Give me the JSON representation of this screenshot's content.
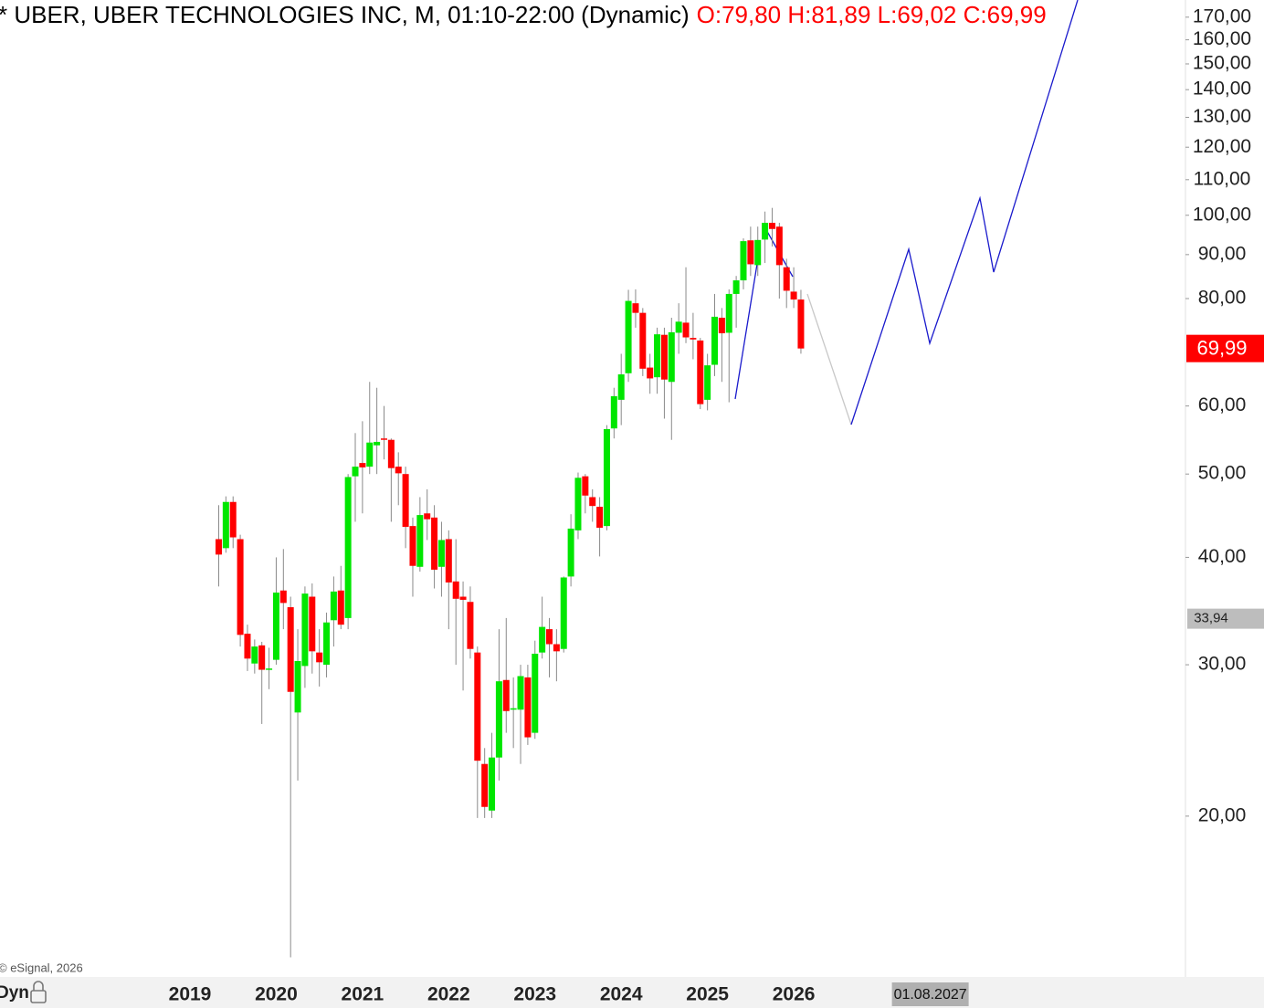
{
  "chart_data": {
    "type": "candlestick",
    "title": "* UBER, UBER TECHNOLOGIES INC, M, 01:10-22:00 (Dynamic)",
    "ohlc_label": "O:79,80 H:81,89 L:69,02 C:69,99",
    "categories": [
      "2019",
      null,
      null,
      null,
      null,
      null,
      null,
      null,
      null,
      null,
      null,
      null,
      "2020",
      null,
      null,
      null,
      null,
      null,
      null,
      null,
      null,
      null,
      null,
      null,
      "2021",
      null,
      null,
      null,
      null,
      null,
      null,
      null,
      null,
      null,
      null,
      null,
      "2022",
      null,
      null,
      null,
      null,
      null,
      null,
      null,
      null,
      null,
      null,
      null,
      "2023",
      null,
      null,
      null,
      null,
      null,
      null,
      null,
      null,
      null,
      null,
      null,
      "2024",
      null,
      null,
      null,
      null,
      null,
      null,
      null,
      null,
      null,
      null,
      null,
      "2025",
      null,
      null,
      null,
      null,
      null,
      null,
      null,
      null,
      null,
      null,
      null,
      "2026",
      null
    ],
    "open": [
      null,
      null,
      null,
      null,
      42,
      41,
      46.4,
      42,
      32.6,
      30.1,
      31.6,
      29.6,
      30.4,
      36.6,
      35,
      26.4,
      29.9,
      36,
      31,
      30,
      33.8,
      36.6,
      34,
      49.7,
      51.5,
      51,
      54,
      55,
      54.8,
      51,
      50,
      43.5,
      39,
      45,
      44.5,
      39,
      42,
      37.5,
      36,
      35.5,
      31,
      23,
      20.3,
      23.4,
      28.8,
      26.6,
      26.6,
      29,
      25,
      31,
      33,
      31.7,
      31.3,
      38,
      43,
      49.7,
      47,
      45.8,
      43.5,
      56.5,
      61,
      65.5,
      79,
      77,
      66.5,
      64.8,
      72.6,
      64,
      73,
      75,
      72,
      71.5,
      61,
      67,
      76,
      73,
      81,
      84,
      93.5,
      87.5,
      93.7,
      98,
      97,
      87,
      81.5,
      79.8
    ],
    "high": [
      null,
      null,
      null,
      null,
      46,
      47.1,
      47.1,
      42.5,
      33.4,
      32.1,
      31.9,
      31.4,
      40,
      40.9,
      36,
      33,
      37,
      37.3,
      33,
      34.5,
      38,
      39.1,
      50,
      55.8,
      57.6,
      64,
      63,
      60,
      55,
      53,
      51,
      44.5,
      47,
      48,
      46,
      44,
      43,
      42,
      37.5,
      37,
      31.5,
      24,
      25,
      33,
      34,
      29,
      30,
      30,
      32,
      36,
      34,
      33,
      38,
      44.9,
      50.2,
      50,
      48,
      47,
      57,
      63,
      69,
      81.9,
      82,
      78,
      69,
      74,
      74,
      76,
      79,
      87,
      77,
      72,
      69,
      81,
      78,
      82,
      85,
      94,
      97,
      97,
      101,
      102,
      98,
      89,
      87,
      81.89
    ],
    "low": [
      null,
      null,
      null,
      null,
      37,
      40.5,
      41,
      31.5,
      29.5,
      29.3,
      25.6,
      28.1,
      30,
      33,
      13.7,
      22,
      28.2,
      29.3,
      28.3,
      29,
      31.5,
      33,
      33,
      44,
      45,
      50,
      50,
      52,
      44,
      46,
      41,
      36,
      38.5,
      41.9,
      36.8,
      36,
      33,
      30,
      28,
      30.5,
      19.9,
      19.9,
      19.9,
      22,
      25,
      24,
      23,
      24.2,
      24.6,
      30.5,
      29,
      28.7,
      31,
      37,
      42,
      45,
      44,
      40.1,
      43,
      55,
      57,
      64,
      74,
      65,
      62,
      62,
      58,
      54.8,
      69,
      71,
      68,
      59.5,
      59.3,
      65,
      64,
      60.6,
      74,
      82,
      85,
      85,
      88,
      92,
      80,
      78,
      78,
      69.02
    ],
    "close": [
      null,
      null,
      null,
      null,
      40.3,
      46.4,
      42.2,
      32.5,
      30.5,
      31.5,
      29.6,
      29.7,
      36.4,
      35.4,
      27.9,
      30.3,
      36.3,
      31.1,
      30.2,
      33.6,
      36.5,
      33.4,
      49.6,
      51,
      50.9,
      54.4,
      54.5,
      54.8,
      50.8,
      50.1,
      43.4,
      39.1,
      44.8,
      44.3,
      38.7,
      41.9,
      37.4,
      35.8,
      35.7,
      31.3,
      23.2,
      20.5,
      23.4,
      28.7,
      26.5,
      26.7,
      29.1,
      24.7,
      30.9,
      33.2,
      31.7,
      31.1,
      37.9,
      43.2,
      49.5,
      47.2,
      45.9,
      43.3,
      56.4,
      61.6,
      65.3,
      79.5,
      77,
      66.3,
      64.6,
      72.7,
      64.4,
      73.1,
      75.2,
      72.1,
      71.7,
      60.3,
      66.9,
      76.2,
      72.9,
      81,
      84,
      93.3,
      87.7,
      93.6,
      98,
      96.4,
      87.5,
      81.7,
      79.8,
      69.99
    ],
    "up_color": "#00e600",
    "down_color": "#ff0000",
    "log_scale": true,
    "ylim": [
      13,
      178
    ],
    "yticks": [
      {
        "value": 20,
        "label": "20,00"
      },
      {
        "value": 30,
        "label": "30,00"
      },
      {
        "value": 40,
        "label": "40,00"
      },
      {
        "value": 50,
        "label": "50,00"
      },
      {
        "value": 60,
        "label": "60,00"
      },
      {
        "value": 80,
        "label": "80,00"
      },
      {
        "value": 90,
        "label": "90,00"
      },
      {
        "value": 100,
        "label": "100,00"
      },
      {
        "value": 110,
        "label": "110,00"
      },
      {
        "value": 120,
        "label": "120,00"
      },
      {
        "value": 130,
        "label": "130,00"
      },
      {
        "value": 140,
        "label": "140,00"
      },
      {
        "value": 150,
        "label": "150,00"
      },
      {
        "value": 160,
        "label": "160,00"
      },
      {
        "value": 170,
        "label": "170,00"
      }
    ],
    "last_price": {
      "value": 69.99,
      "label": "69,99",
      "color": "#ff0000"
    },
    "marker_level": {
      "value": 33.94,
      "label": "33,94"
    },
    "cursor_date": "01.08.2027",
    "copyright": "© eSignal, 2026",
    "mode_label": "Dyn"
  }
}
